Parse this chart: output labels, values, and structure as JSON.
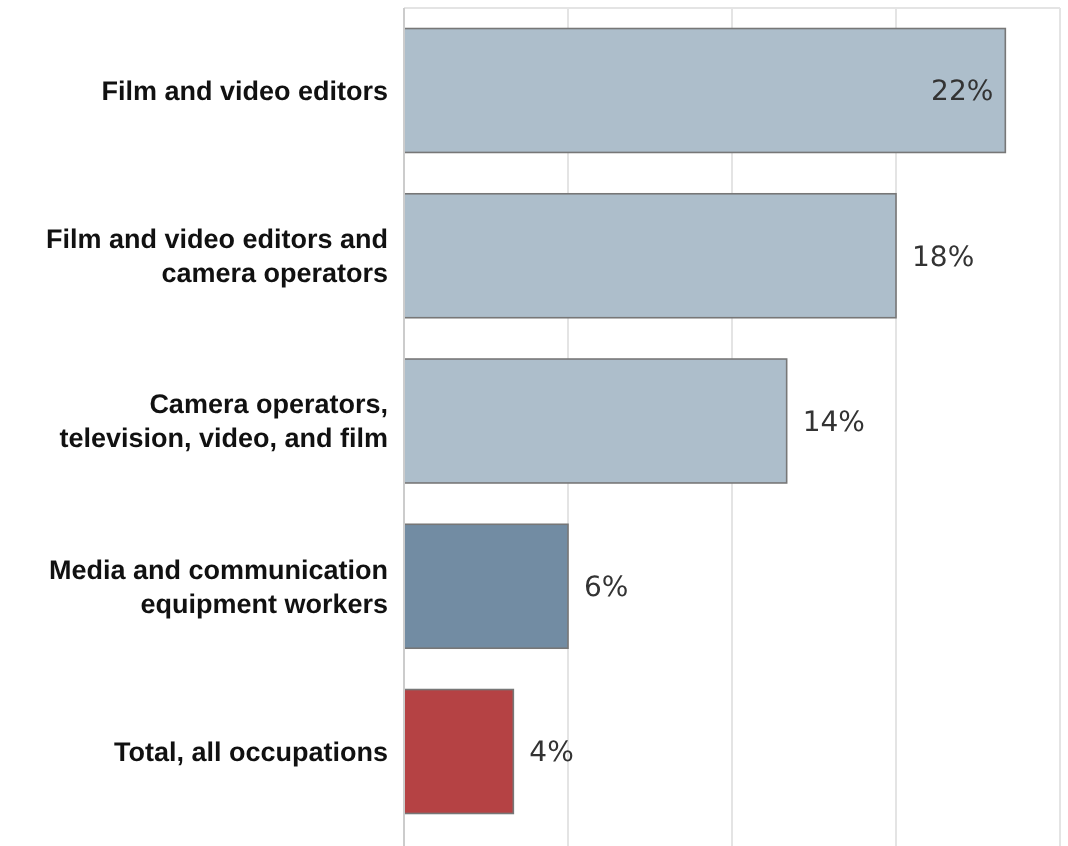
{
  "chart_data": {
    "type": "bar",
    "orientation": "horizontal",
    "categories": [
      "Film and video editors",
      "Film and video editors and camera operators",
      "Camera operators, television, video, and film",
      "Media and communication equipment workers",
      "Total, all occupations"
    ],
    "values": [
      22,
      18,
      14,
      6,
      4
    ],
    "colors": [
      "#adbecb",
      "#adbecb",
      "#adbecb",
      "#728ca3",
      "#b54244"
    ],
    "value_labels": [
      "22%",
      "18%",
      "14%",
      "6%",
      "4%"
    ],
    "xlim": [
      0,
      24
    ],
    "xticks": [
      {
        "value": 0,
        "label": null
      },
      {
        "value": 6,
        "label": null
      },
      {
        "value": 12,
        "label": null
      },
      {
        "value": 18,
        "label": null
      },
      {
        "value": 24,
        "label": null
      }
    ],
    "tick_labels": "y",
    "grid": "x"
  }
}
